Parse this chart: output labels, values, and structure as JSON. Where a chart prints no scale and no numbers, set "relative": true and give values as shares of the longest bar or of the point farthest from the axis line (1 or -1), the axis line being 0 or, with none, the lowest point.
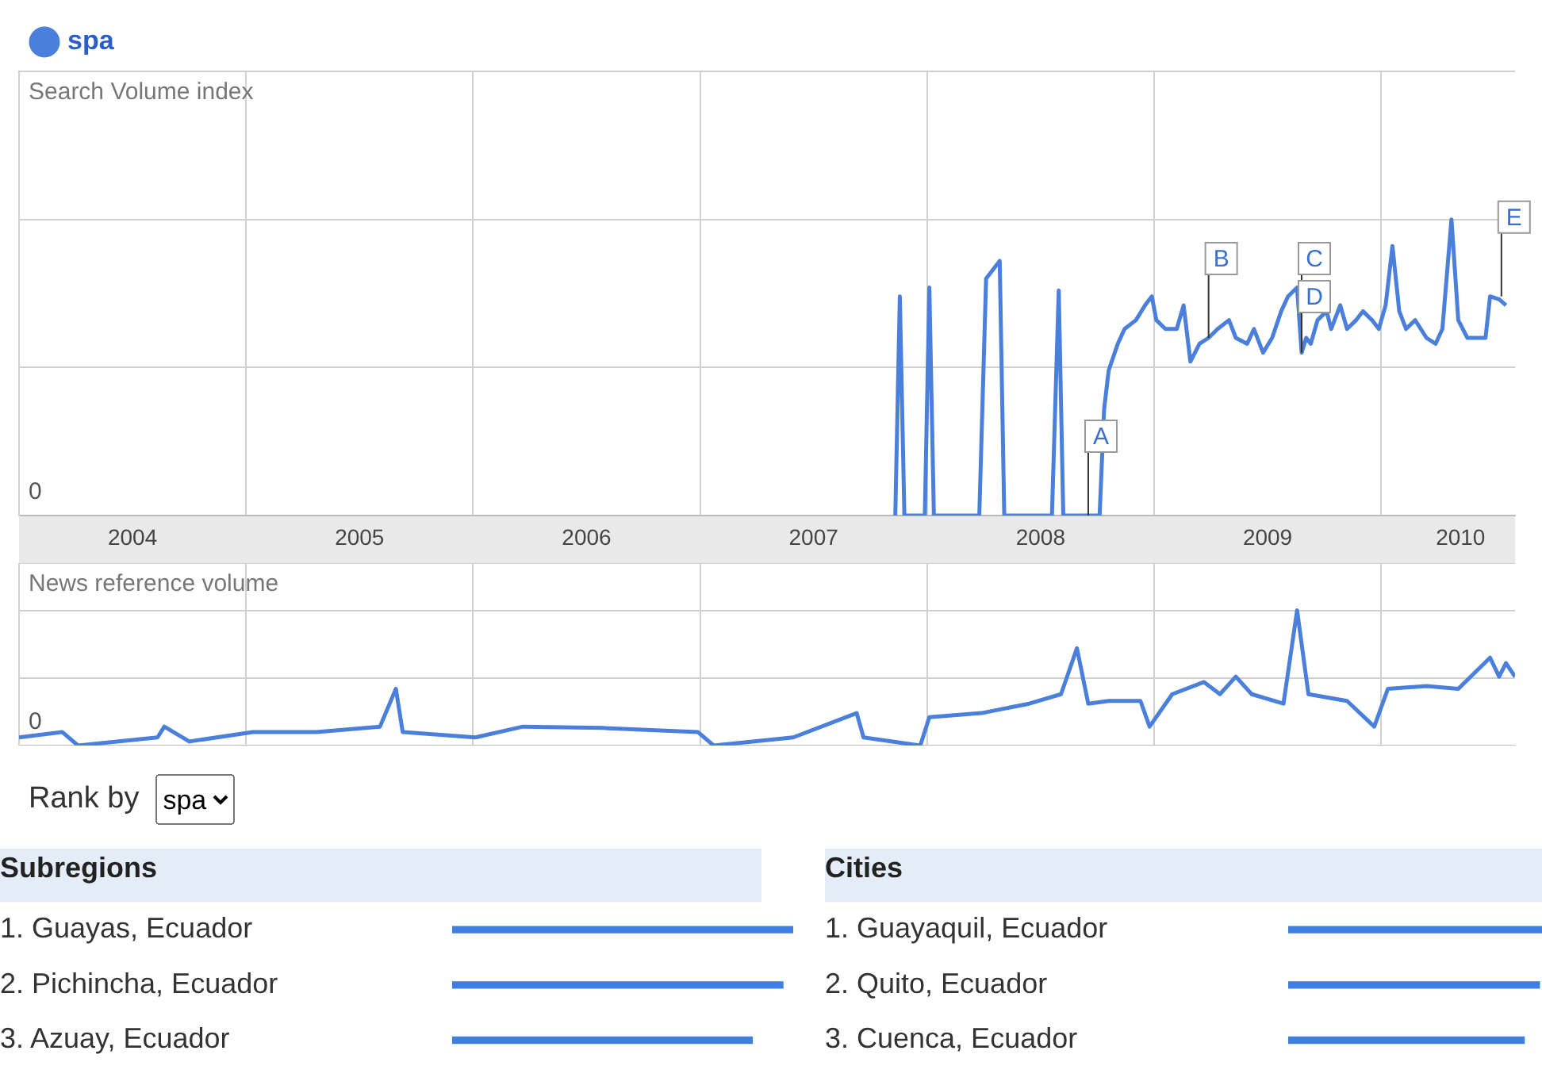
{
  "chart_data": [
    {
      "type": "line",
      "ylabel": "Search Volume index",
      "relative": true,
      "xlim": [
        2004,
        2010.59
      ],
      "xticks": [
        {
          "value": 2004.5,
          "label": "2004"
        },
        {
          "value": 2005,
          "label": null
        },
        {
          "value": 2005.5,
          "label": "2005"
        },
        {
          "value": 2006,
          "label": null
        },
        {
          "value": 2006.5,
          "label": "2006"
        },
        {
          "value": 2007,
          "label": null
        },
        {
          "value": 2007.5,
          "label": "2007"
        },
        {
          "value": 2008,
          "label": null
        },
        {
          "value": 2008.5,
          "label": "2008"
        },
        {
          "value": 2009,
          "label": null
        },
        {
          "value": 2009.5,
          "label": "2009"
        },
        {
          "value": 2010,
          "label": null
        },
        {
          "value": 2010.35,
          "label": "2010"
        }
      ],
      "grid": true,
      "legend": "top left",
      "marker": "none",
      "series": [
        {
          "name": "spa",
          "color": "#4a7fdc",
          "x": [
            2007.86,
            2007.88,
            2007.9,
            2007.99,
            2008.01,
            2008.03,
            2008.23,
            2008.26,
            2008.32,
            2008.34,
            2008.55,
            2008.58,
            2008.6,
            2008.76,
            2008.78,
            2008.8,
            2008.84,
            2008.87,
            2008.92,
            2008.96,
            2008.99,
            2009.01,
            2009.05,
            2009.1,
            2009.13,
            2009.16,
            2009.2,
            2009.24,
            2009.28,
            2009.33,
            2009.36,
            2009.41,
            2009.44,
            2009.48,
            2009.52,
            2009.56,
            2009.59,
            2009.63,
            2009.65,
            2009.67,
            2009.69,
            2009.72,
            2009.76,
            2009.78,
            2009.82,
            2009.85,
            2009.89,
            2009.92,
            2009.96,
            2009.99,
            2010.02,
            2010.05,
            2010.08,
            2010.11,
            2010.15,
            2010.2,
            2010.24,
            2010.27,
            2010.31,
            2010.34,
            2010.38,
            2010.43,
            2010.46,
            2010.48,
            2010.52,
            2010.55
          ],
          "values": [
            0,
            0.74,
            0,
            0,
            0.77,
            0,
            0,
            0.8,
            0.86,
            0,
            0,
            0.76,
            0,
            0,
            0.36,
            0.49,
            0.58,
            0.63,
            0.66,
            0.71,
            0.74,
            0.66,
            0.63,
            0.63,
            0.71,
            0.52,
            0.58,
            0.6,
            0.63,
            0.66,
            0.6,
            0.58,
            0.63,
            0.55,
            0.6,
            0.69,
            0.74,
            0.77,
            0.55,
            0.6,
            0.58,
            0.66,
            0.69,
            0.63,
            0.71,
            0.63,
            0.66,
            0.69,
            0.66,
            0.63,
            0.71,
            0.91,
            0.69,
            0.63,
            0.66,
            0.6,
            0.58,
            0.63,
            1,
            0.66,
            0.6,
            0.6,
            0.6,
            0.74,
            0.73,
            0.71
          ]
        }
      ],
      "annotations": [
        "0",
        {
          "text": "A",
          "x": 2008.71,
          "y": 0
        },
        {
          "text": "B",
          "x": 2009.24,
          "y": 0.6
        },
        {
          "text": "C",
          "x": 2009.65,
          "y": 0.6
        },
        {
          "text": "D",
          "x": 2009.65,
          "y": 0.55
        },
        {
          "text": "E",
          "x": 2010.53,
          "y": 0.74
        }
      ]
    },
    {
      "type": "line",
      "ylabel": "News reference volume",
      "relative": true,
      "xlim": [
        2004,
        2010.59
      ],
      "xticks": [
        {
          "value": 2005,
          "label": null
        },
        {
          "value": 2006,
          "label": null
        },
        {
          "value": 2007,
          "label": null
        },
        {
          "value": 2008,
          "label": null
        },
        {
          "value": 2009,
          "label": null
        },
        {
          "value": 2010,
          "label": null
        }
      ],
      "tick_labels": false,
      "grid": true,
      "marker": "none",
      "series": [
        {
          "color": "#4a7fdc",
          "x": [
            2004,
            2004.19,
            2004.26,
            2004.61,
            2004.64,
            2004.75,
            2005.03,
            2005.31,
            2005.59,
            2005.66,
            2005.69,
            2006.01,
            2006.22,
            2006.57,
            2006.99,
            2007.06,
            2007.41,
            2007.69,
            2007.72,
            2007.97,
            2008.01,
            2008.24,
            2008.45,
            2008.59,
            2008.66,
            2008.71,
            2008.8,
            2008.94,
            2008.98,
            2009.08,
            2009.22,
            2009.29,
            2009.36,
            2009.43,
            2009.57,
            2009.63,
            2009.68,
            2009.85,
            2009.97,
            2010.03,
            2010.2,
            2010.34,
            2010.48,
            2010.52,
            2010.55,
            2010.59
          ],
          "values": [
            0.06,
            0.1,
            0,
            0.06,
            0.14,
            0.03,
            0.1,
            0.1,
            0.14,
            0.42,
            0.1,
            0.06,
            0.14,
            0.13,
            0.1,
            0,
            0.06,
            0.24,
            0.06,
            0,
            0.21,
            0.24,
            0.31,
            0.38,
            0.72,
            0.31,
            0.33,
            0.33,
            0.14,
            0.38,
            0.47,
            0.38,
            0.51,
            0.38,
            0.31,
            1,
            0.38,
            0.33,
            0.14,
            0.42,
            0.44,
            0.42,
            0.65,
            0.51,
            0.61,
            0.51
          ]
        }
      ],
      "annotations": [
        "0"
      ]
    },
    {
      "type": "bar",
      "orientation": "horizontal",
      "relative": true,
      "title": "Subregions",
      "categories": [
        "1. Guayas, Ecuador",
        "2. Pichincha, Ecuador",
        "3. Azuay, Ecuador"
      ],
      "values": [
        1,
        0.97,
        0.88
      ],
      "color": "#3f7fdf",
      "annotations": [
        "Rank by",
        "spa"
      ]
    },
    {
      "type": "bar",
      "orientation": "horizontal",
      "relative": true,
      "title": "Cities",
      "categories": [
        "1. Guayaquil, Ecuador",
        "2. Quito, Ecuador",
        "3. Cuenca, Ecuador"
      ],
      "values": [
        1,
        0.99,
        0.93
      ],
      "color": "#3f7fdf"
    }
  ]
}
